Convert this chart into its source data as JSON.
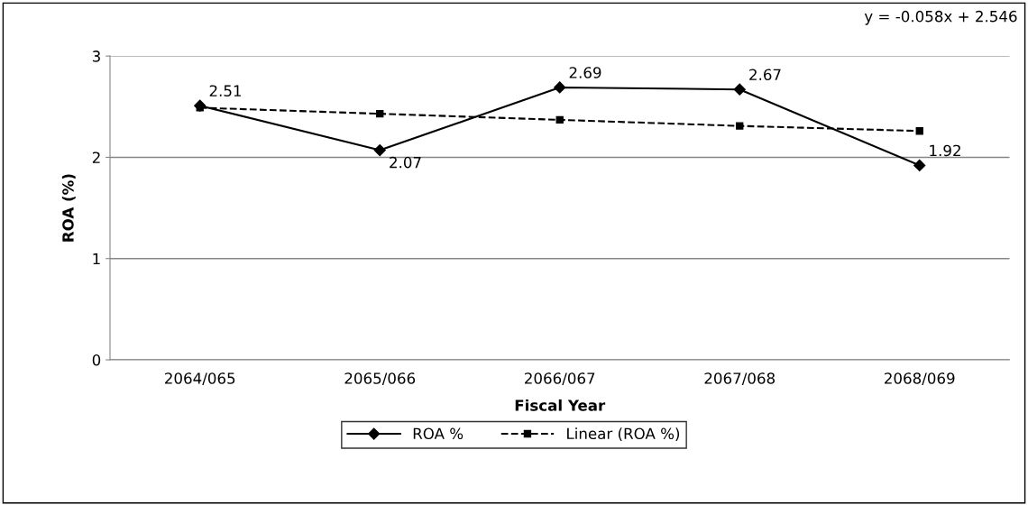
{
  "chart_data": {
    "type": "line",
    "xlabel": "Fiscal Year",
    "ylabel": "ROA (%)",
    "categories": [
      "2064/065",
      "2065/066",
      "2066/067",
      "2067/068",
      "2068/069"
    ],
    "series": [
      {
        "name": "ROA %",
        "color": "#000000",
        "values": [
          2.51,
          2.07,
          2.69,
          2.67,
          1.92
        ],
        "marker": "diamond",
        "line_style": "solid",
        "value_labels": [
          "2.51",
          "2.07",
          "2.69",
          "2.67",
          "1.92"
        ]
      },
      {
        "name": "Linear (ROA %)",
        "type": "line",
        "color": "#000000",
        "values": [
          2.49,
          2.43,
          2.37,
          2.31,
          2.26
        ],
        "marker": "square",
        "line_style": "dashed"
      }
    ],
    "ylim": [
      0,
      3
    ],
    "yticks": [
      0,
      1,
      2,
      3
    ],
    "grid": "y",
    "legend": "bottom",
    "annotations": [
      "y = -0.058x + 2.546"
    ]
  }
}
